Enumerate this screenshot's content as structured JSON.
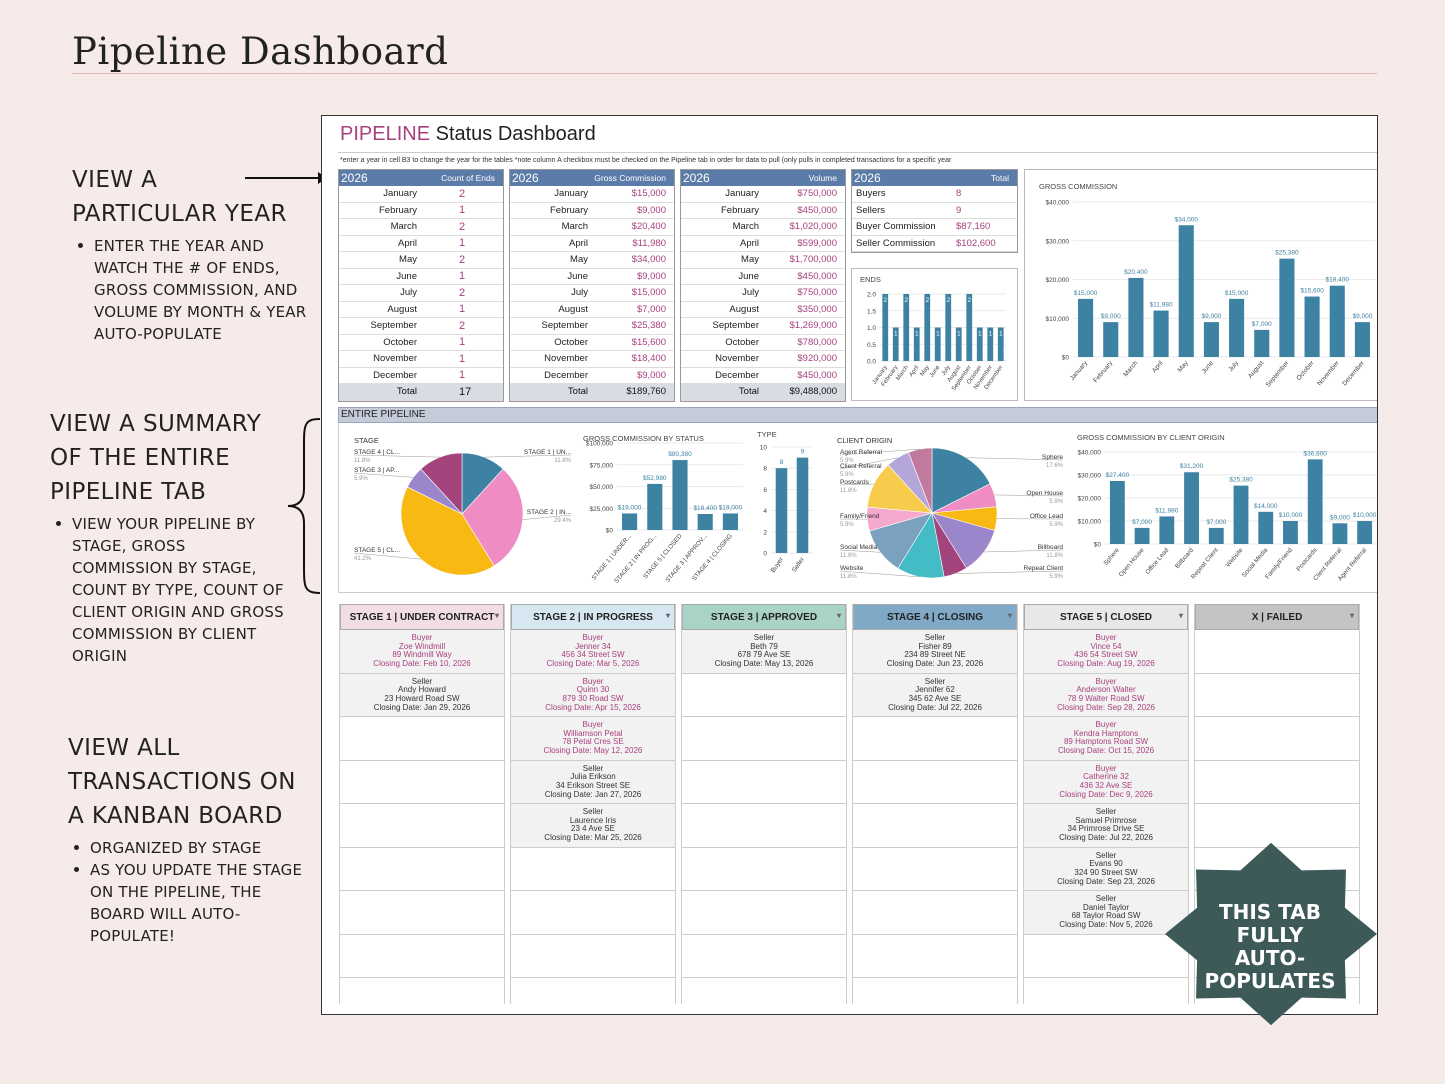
{
  "page": {
    "title": "Pipeline Dashboard"
  },
  "annotations": [
    {
      "heading": [
        "VIEW A",
        "PARTICULAR YEAR"
      ],
      "bullets": [
        "ENTER THE YEAR AND WATCH THE # OF ENDS, GROSS COMMISSION, AND VOLUME BY MONTH & YEAR AUTO-POPULATE"
      ]
    },
    {
      "heading": [
        "VIEW A SUMMARY",
        "OF THE ENTIRE",
        "PIPELINE TAB"
      ],
      "bullets": [
        "VIEW YOUR PIPELINE BY STAGE, GROSS COMMISSION BY STAGE, COUNT BY TYPE, COUNT OF CLIENT ORIGIN AND GROSS COMMISSION BY CLIENT ORIGIN"
      ]
    },
    {
      "heading": [
        "VIEW ALL",
        "TRANSACTIONS ON",
        "A KANBAN BOARD"
      ],
      "bullets": [
        "ORGANIZED BY STAGE",
        "AS YOU UPDATE THE STAGE ON THE PIPELINE, THE BOARD WILL AUTO-POPULATE!"
      ]
    }
  ],
  "sheet": {
    "title_accent": "PIPELINE",
    "title_rest": " Status Dashboard",
    "note": "*enter a year in cell B3 to change the year for the tables *note column A checkbox must be checked on the Pipeline tab in order for data to pull (only pulls in completed transactions for a specific year",
    "year": "2026",
    "months": [
      "January",
      "February",
      "March",
      "April",
      "May",
      "June",
      "July",
      "August",
      "September",
      "October",
      "November",
      "December"
    ],
    "total_label": "Total",
    "ends": {
      "header": "Count of Ends",
      "values": [
        "2",
        "1",
        "2",
        "1",
        "2",
        "1",
        "2",
        "1",
        "2",
        "1",
        "1",
        "1"
      ],
      "total": "17"
    },
    "gross": {
      "header": "Gross Commission",
      "values": [
        "$15,000",
        "$9,000",
        "$20,400",
        "$11,980",
        "$34,000",
        "$9,000",
        "$15,000",
        "$7,000",
        "$25,380",
        "$15,600",
        "$18,400",
        "$9,000"
      ],
      "total": "$189,760"
    },
    "volume": {
      "header": "Volume",
      "values": [
        "$750,000",
        "$450,000",
        "$1,020,000",
        "$599,000",
        "$1,700,000",
        "$450,000",
        "$750,000",
        "$350,000",
        "$1,269,000",
        "$780,000",
        "$920,000",
        "$450,000"
      ],
      "total": "$9,488,000"
    },
    "totals": {
      "header": "Total",
      "rows": [
        {
          "label": "Buyers",
          "value": "8"
        },
        {
          "label": "Sellers",
          "value": "9"
        },
        {
          "label": "Buyer Commission",
          "value": "$87,160"
        },
        {
          "label": "Seller Commission",
          "value": "$102,600"
        }
      ]
    },
    "entire_pipeline_label": "ENTIRE PIPELINE",
    "kanban": [
      {
        "header": "STAGE 1 | UNDER CONTRACT",
        "color": "#f1dde6",
        "cards": [
          [
            "Buyer",
            "Zoe Windmill",
            "89 Windmill Way",
            "Closing Date: Feb 10, 2026"
          ],
          [
            "Seller",
            "Andy Howard",
            "23 Howard Road SW",
            "Closing Date: Jan 29, 2026"
          ]
        ]
      },
      {
        "header": "STAGE 2 | IN PROGRESS",
        "color": "#d6e7f2",
        "cards": [
          [
            "Buyer",
            "Jenner 34",
            "456 34 Street SW",
            "Closing Date: Mar 5, 2026"
          ],
          [
            "Buyer",
            "Quinn 30",
            "879 30 Road SW",
            "Closing Date: Apr 15, 2026"
          ],
          [
            "Buyer",
            "Williamson Petal",
            "78 Petal Cres SE",
            "Closing Date: May 12, 2026"
          ],
          [
            "Seller",
            "Julia Erikson",
            "34 Erikson Street SE",
            "Closing Date: Jan 27, 2026"
          ],
          [
            "Seller",
            "Laurence Iris",
            "23 4 Ave SE",
            "Closing Date: Mar 25, 2026"
          ]
        ]
      },
      {
        "header": "STAGE 3 | APPROVED",
        "color": "#a9d3c6",
        "cards": [
          [
            "Seller",
            "Beth 79",
            "678 79 Ave SE",
            "Closing Date: May 13, 2026"
          ]
        ]
      },
      {
        "header": "STAGE 4 | CLOSING",
        "color": "#7fa9c6",
        "cards": [
          [
            "Seller",
            "Fisher 89",
            "234 89 Street NE",
            "Closing Date: Jun 23, 2026"
          ],
          [
            "Seller",
            "Jennifer 62",
            "345 62 Ave SE",
            "Closing Date: Jul 22, 2026"
          ]
        ]
      },
      {
        "header": "STAGE 5 | CLOSED",
        "color": "#e8e8e8",
        "cards": [
          [
            "Buyer",
            "Vince 54",
            "436 54 Street SW",
            "Closing Date: Aug 19, 2026"
          ],
          [
            "Buyer",
            "Anderson Walter",
            "78 9 Walter Road SW",
            "Closing Date: Sep 28, 2026"
          ],
          [
            "Buyer",
            "Kendra Hamptons",
            "89 Hamptons Road SW",
            "Closing Date: Oct 15, 2026"
          ],
          [
            "Buyer",
            "Catherine 32",
            "436 32 Ave SE",
            "Closing Date: Dec 9, 2026"
          ],
          [
            "Seller",
            "Samuel Primrose",
            "34 Primrose Drive SE",
            "Closing Date: Jul 22, 2026"
          ],
          [
            "Seller",
            "Evans 90",
            "324 90 Street SW",
            "Closing Date: Sep 23, 2026"
          ],
          [
            "Seller",
            "Daniel Taylor",
            "68 Taylor Road SW",
            "Closing Date: Nov 5, 2026"
          ]
        ]
      },
      {
        "header": "X | FAILED",
        "color": "#c4c4c4",
        "cards": []
      }
    ]
  },
  "badge": {
    "lines": [
      "THIS TAB",
      "FULLY",
      "AUTO-",
      "POPULATES"
    ],
    "color": "#3d5a59"
  },
  "chart_data": [
    {
      "type": "bar",
      "title": "GROSS COMMISSION",
      "categories": [
        "January",
        "February",
        "March",
        "April",
        "May",
        "June",
        "July",
        "August",
        "September",
        "October",
        "November",
        "December"
      ],
      "values": [
        15000,
        9000,
        20400,
        11980,
        34000,
        9000,
        15000,
        7000,
        25380,
        15600,
        18400,
        9000
      ],
      "labels": [
        "$15,000",
        "$9,000",
        "$20,400",
        "$11,980",
        "$34,000",
        "$9,000",
        "$15,000",
        "$7,000",
        "$25,380",
        "$15,600",
        "$18,400",
        "$9,000"
      ],
      "yticks": [
        "$40,000",
        "$30,000",
        "$20,000",
        "$10,000",
        "$0"
      ],
      "ylim": [
        0,
        40000
      ],
      "color": "#3d82a3"
    },
    {
      "type": "bar",
      "title": "ENDS",
      "categories": [
        "January",
        "February",
        "March",
        "April",
        "May",
        "June",
        "July",
        "August",
        "September",
        "October",
        "November",
        "December"
      ],
      "values": [
        2,
        1,
        2,
        1,
        2,
        1,
        2,
        1,
        2,
        1,
        1,
        1
      ],
      "yticks": [
        "2.0",
        "1.5",
        "1.0",
        "0.5",
        "0.0"
      ],
      "ylim": [
        0,
        2
      ],
      "color": "#3d82a3"
    },
    {
      "type": "pie",
      "title": "STAGE",
      "slices": [
        {
          "name": "STAGE 1 | UN...",
          "pct": "11.8%",
          "value": 11.8,
          "color": "#3d82a3"
        },
        {
          "name": "STAGE 2 | IN...",
          "pct": "29.4%",
          "value": 29.4,
          "color": "#f08cc4"
        },
        {
          "name": "STAGE 5 | CL...",
          "pct": "41.2%",
          "value": 41.2,
          "color": "#f8b912"
        },
        {
          "name": "STAGE 3 | AP...",
          "pct": "5.9%",
          "value": 5.9,
          "color": "#9b86cb"
        },
        {
          "name": "STAGE 4 | CL...",
          "pct": "11.8%",
          "value": 11.8,
          "color": "#a3457c"
        }
      ]
    },
    {
      "type": "bar",
      "title": "GROSS COMMISSION BY STATUS",
      "categories": [
        "STAGE 1 | UNDER...",
        "STAGE 2 | IN PROG...",
        "STAGE 5 | CLOSED",
        "STAGE 3 | APPROV...",
        "STAGE 4 | CLOSING"
      ],
      "values": [
        19000,
        52980,
        80380,
        18400,
        19000
      ],
      "labels": [
        "$19,000",
        "$52,980",
        "$80,380",
        "$18,400",
        "$19,000"
      ],
      "yticks": [
        "$100,000",
        "$75,000",
        "$50,000",
        "$25,000",
        "$0"
      ],
      "ylim": [
        0,
        100000
      ],
      "color": "#3d82a3"
    },
    {
      "type": "bar",
      "title": "TYPE",
      "categories": [
        "Buyer",
        "Seller"
      ],
      "values": [
        8,
        9
      ],
      "labels": [
        "8",
        "9"
      ],
      "yticks": [
        "10",
        "8",
        "6",
        "4",
        "2",
        "0"
      ],
      "ylim": [
        0,
        10
      ],
      "color": "#3d82a3"
    },
    {
      "type": "pie",
      "title": "CLIENT ORIGIN",
      "slices": [
        {
          "name": "Sphere",
          "pct": "17.6%",
          "value": 17.6,
          "color": "#3d82a3"
        },
        {
          "name": "Open House",
          "pct": "5.9%",
          "value": 5.9,
          "color": "#f08cc4"
        },
        {
          "name": "Office Lead",
          "pct": "5.9%",
          "value": 5.9,
          "color": "#f8b912"
        },
        {
          "name": "Billboard",
          "pct": "11.8%",
          "value": 11.8,
          "color": "#9b86cb"
        },
        {
          "name": "Repeat Client",
          "pct": "5.9%",
          "value": 5.9,
          "color": "#a3457c"
        },
        {
          "name": "Website",
          "pct": "11.8%",
          "value": 11.8,
          "color": "#44bcc6"
        },
        {
          "name": "Social Media",
          "pct": "11.8%",
          "value": 11.8,
          "color": "#7aa2bf"
        },
        {
          "name": "Family/Friend",
          "pct": "5.9%",
          "value": 5.9,
          "color": "#f6a9cf"
        },
        {
          "name": "Postcards",
          "pct": "11.8%",
          "value": 11.8,
          "color": "#f7cc4d"
        },
        {
          "name": "Client Referral",
          "pct": "5.9%",
          "value": 5.9,
          "color": "#b5a6d9"
        },
        {
          "name": "Agent Referral",
          "pct": "5.9%",
          "value": 5.9,
          "color": "#c2799e"
        }
      ]
    },
    {
      "type": "bar",
      "title": "GROSS COMMISSION BY CLIENT ORIGIN",
      "categories": [
        "Sphere",
        "Open House",
        "Office Lead",
        "Billboard",
        "Repeat Client",
        "Website",
        "Social Media",
        "Family/Friend",
        "Postcards",
        "Client Referral",
        "Agent Referral"
      ],
      "values": [
        27400,
        7000,
        11980,
        31200,
        7000,
        25380,
        14000,
        10000,
        36800,
        9000,
        10000
      ],
      "labels": [
        "$27,400",
        "$7,000",
        "$11,980",
        "$31,200",
        "$7,000",
        "$25,380",
        "$14,000",
        "$10,000",
        "$36,800",
        "$9,000",
        "$10,000"
      ],
      "yticks": [
        "$40,000",
        "$30,000",
        "$20,000",
        "$10,000",
        "$0"
      ],
      "ylim": [
        0,
        40000
      ],
      "color": "#3d82a3"
    }
  ]
}
